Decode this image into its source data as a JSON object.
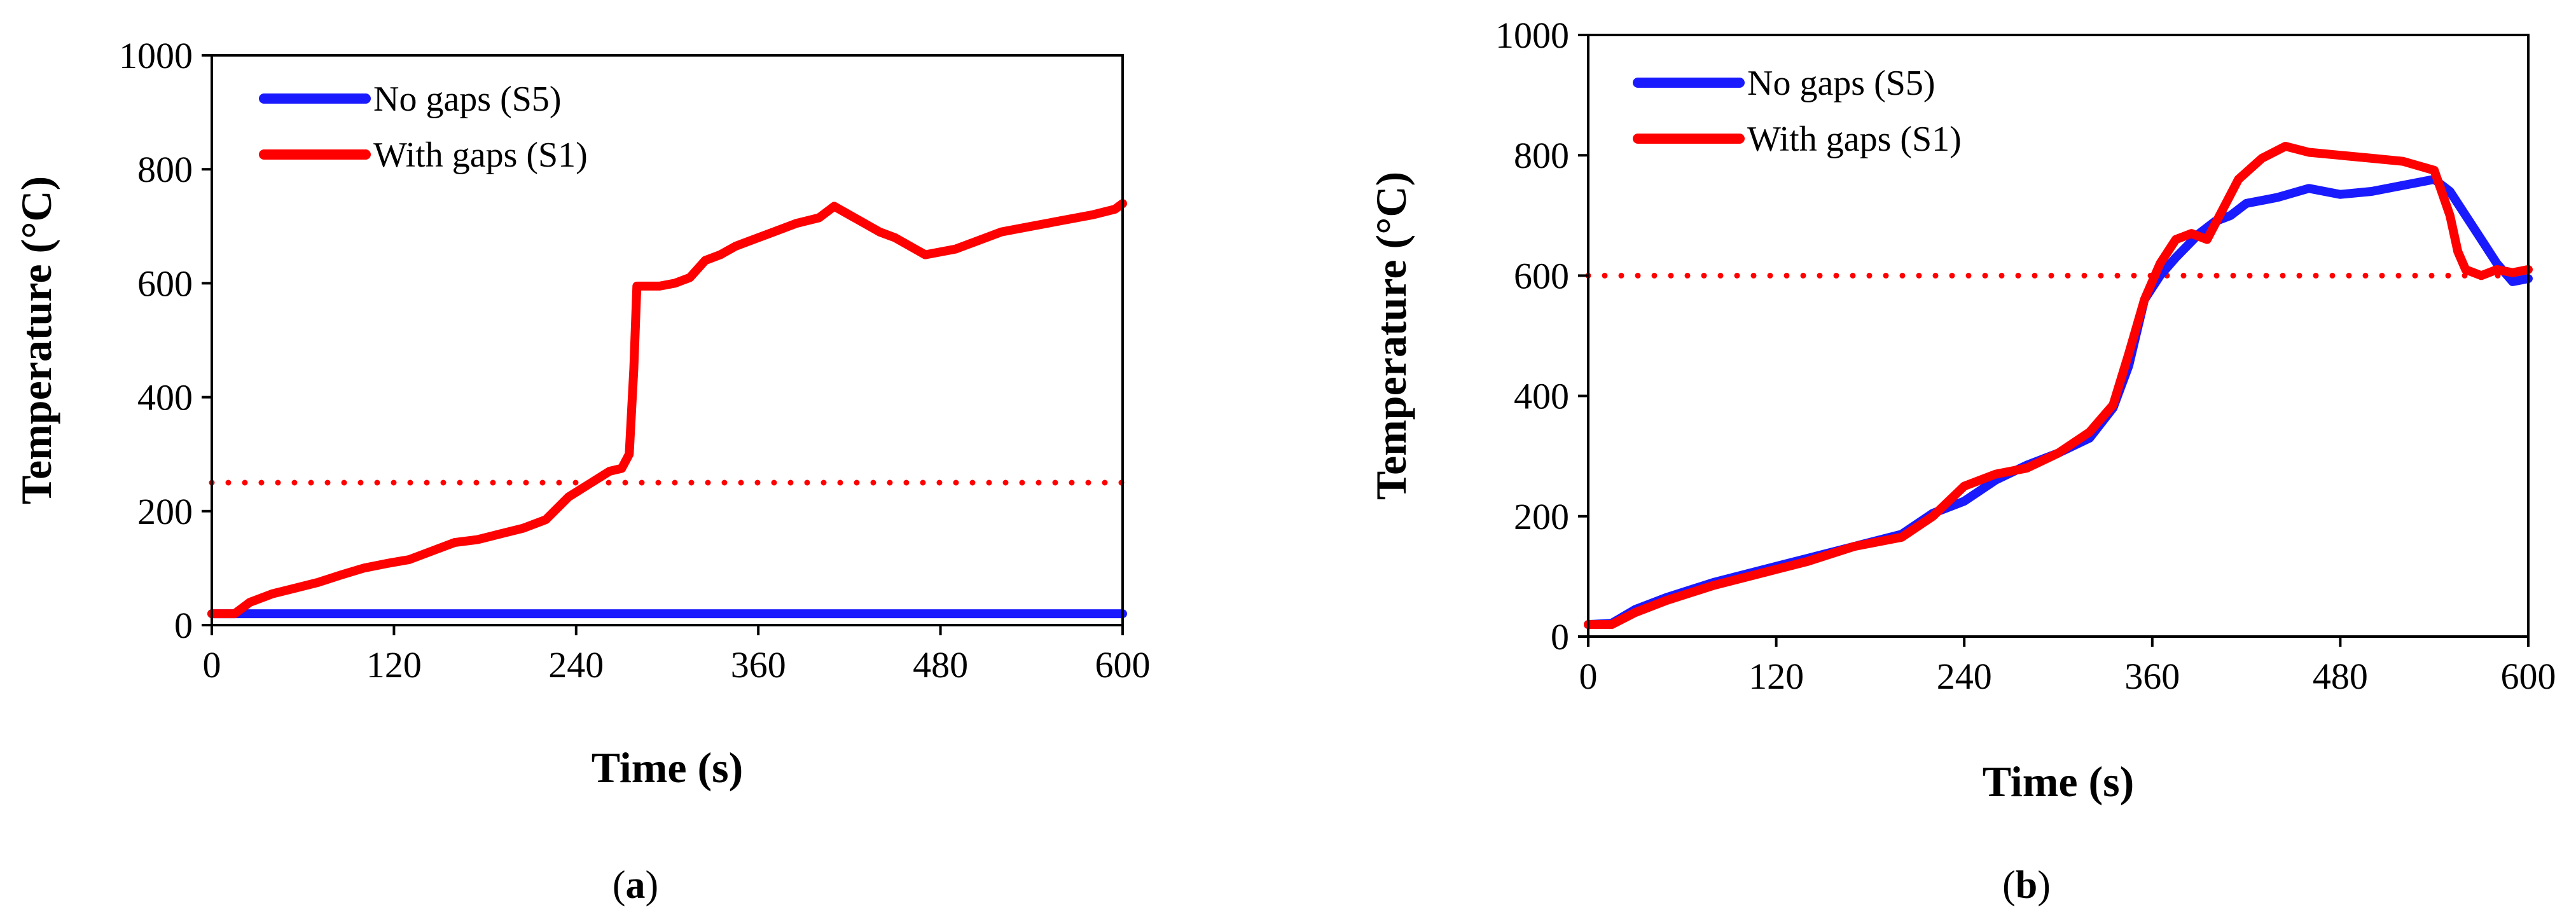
{
  "chart_data": [
    {
      "id": "a",
      "type": "line",
      "panel_label": "a",
      "xlabel": "Time (s)",
      "ylabel": "Temperature (°C)",
      "xlim": [
        0,
        600
      ],
      "ylim": [
        0,
        1000
      ],
      "xticks": [
        0,
        120,
        240,
        360,
        480,
        600
      ],
      "yticks": [
        0,
        200,
        400,
        600,
        800,
        1000
      ],
      "legend_position": "top-left",
      "reference_lines": [
        {
          "y": 250,
          "color": "#ff0000",
          "style": "dotted"
        }
      ],
      "series": [
        {
          "name": "No gaps (S5)",
          "color": "#1a1aff",
          "x": [
            0,
            60,
            120,
            240,
            360,
            480,
            600
          ],
          "y": [
            20,
            20,
            20,
            20,
            20,
            20,
            20
          ]
        },
        {
          "name": "With gaps (S1)",
          "color": "#ff0000",
          "x": [
            0,
            15,
            25,
            40,
            55,
            70,
            85,
            100,
            115,
            130,
            145,
            160,
            175,
            190,
            205,
            220,
            235,
            250,
            262,
            270,
            275,
            278,
            280,
            285,
            295,
            305,
            315,
            325,
            335,
            345,
            355,
            370,
            385,
            400,
            410,
            420,
            430,
            440,
            450,
            460,
            470,
            480,
            490,
            500,
            520,
            540,
            560,
            580,
            595,
            600
          ],
          "y": [
            20,
            20,
            40,
            55,
            65,
            75,
            88,
            100,
            108,
            115,
            130,
            145,
            150,
            160,
            170,
            185,
            225,
            250,
            270,
            275,
            300,
            450,
            595,
            595,
            595,
            600,
            610,
            640,
            650,
            665,
            675,
            690,
            705,
            715,
            735,
            720,
            705,
            690,
            680,
            665,
            650,
            655,
            660,
            670,
            690,
            700,
            710,
            720,
            730,
            740
          ]
        }
      ]
    },
    {
      "id": "b",
      "type": "line",
      "panel_label": "b",
      "xlabel": "Time (s)",
      "ylabel": "Temperature (°C)",
      "xlim": [
        0,
        600
      ],
      "ylim": [
        0,
        1000
      ],
      "xticks": [
        0,
        120,
        240,
        360,
        480,
        600
      ],
      "yticks": [
        0,
        200,
        400,
        600,
        800,
        1000
      ],
      "legend_position": "top-left",
      "reference_lines": [
        {
          "y": 600,
          "color": "#ff0000",
          "style": "dotted"
        }
      ],
      "series": [
        {
          "name": "No gaps (S5)",
          "color": "#1a1aff",
          "x": [
            0,
            15,
            30,
            50,
            80,
            110,
            140,
            170,
            200,
            220,
            240,
            260,
            280,
            300,
            320,
            335,
            345,
            355,
            365,
            375,
            390,
            400,
            410,
            420,
            440,
            460,
            480,
            500,
            520,
            540,
            550,
            560,
            570,
            580,
            590,
            600
          ],
          "y": [
            20,
            22,
            45,
            65,
            90,
            110,
            130,
            150,
            170,
            205,
            225,
            260,
            285,
            305,
            330,
            380,
            450,
            560,
            600,
            630,
            670,
            690,
            700,
            720,
            730,
            745,
            735,
            740,
            750,
            760,
            740,
            700,
            660,
            620,
            590,
            595
          ]
        },
        {
          "name": "With gaps (S1)",
          "color": "#ff0000",
          "x": [
            0,
            15,
            30,
            50,
            80,
            110,
            140,
            170,
            200,
            220,
            240,
            260,
            280,
            300,
            320,
            335,
            345,
            355,
            365,
            375,
            385,
            395,
            405,
            415,
            430,
            445,
            460,
            480,
            500,
            520,
            540,
            550,
            555,
            560,
            570,
            580,
            590,
            600
          ],
          "y": [
            20,
            20,
            40,
            60,
            85,
            105,
            125,
            150,
            165,
            200,
            250,
            270,
            280,
            305,
            340,
            385,
            470,
            560,
            620,
            660,
            670,
            660,
            710,
            760,
            795,
            815,
            805,
            800,
            795,
            790,
            775,
            700,
            640,
            610,
            600,
            610,
            605,
            610
          ]
        }
      ]
    }
  ]
}
